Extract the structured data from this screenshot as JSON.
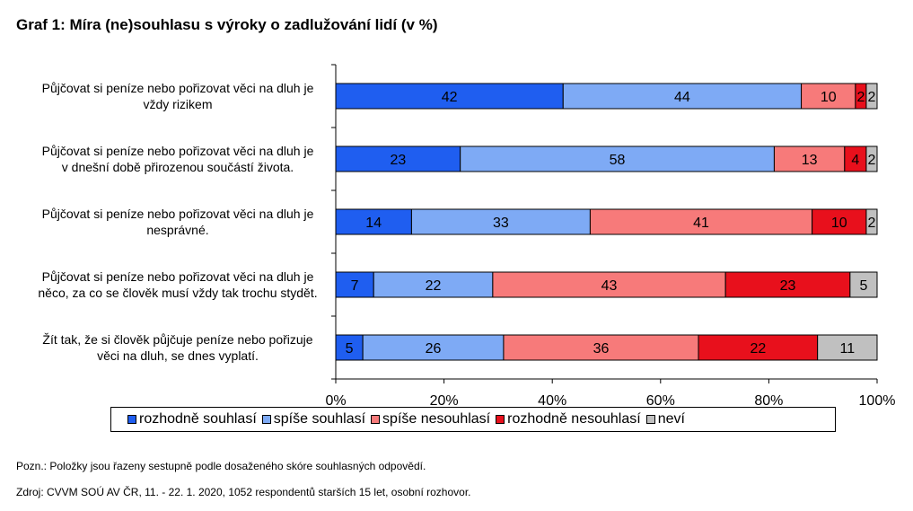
{
  "title": "Graf 1: Míra (ne)souhlasu s výroky o zadlužování lidí (v %)",
  "note": "Pozn.: Položky jsou řazeny sestupně podle dosaženého skóre souhlasných odpovědí.",
  "source": "Zdroj: CVVM SOÚ AV ČR,  11. - 22. 1. 2020, 1052 respondentů starších 15 let, osobní rozhovor.",
  "colors": {
    "rozhodne_souhlasi": "#1f5ef0",
    "spise_souhlasi": "#7eaaf5",
    "spise_nesouhlasi": "#f77a7a",
    "rozhodne_nesouhlasi": "#e8101c",
    "nevi": "#c0c0c0"
  },
  "chart_data": {
    "type": "bar",
    "orientation": "horizontal",
    "stacked": true,
    "categories": [
      "Půjčovat si peníze nebo pořizovat věci na dluh je vždy rizikem",
      "Půjčovat si peníze nebo pořizovat věci na dluh je v dnešní době přirozenou součástí života.",
      "Půjčovat si peníze nebo pořizovat věci na dluh je nesprávné.",
      "Půjčovat si peníze nebo pořizovat věci na dluh je něco, za co se člověk musí vždy tak trochu stydět.",
      "Žít tak, že si člověk půjčuje peníze nebo pořizuje věci na dluh, se dnes vyplatí."
    ],
    "category_lines": [
      [
        "Půjčovat si peníze nebo pořizovat věci na dluh je",
        "vždy rizikem"
      ],
      [
        "Půjčovat si peníze nebo pořizovat věci na dluh je",
        "v dnešní době přirozenou součástí života."
      ],
      [
        "Půjčovat si peníze nebo pořizovat věci na dluh je",
        "nesprávné."
      ],
      [
        "Půjčovat si peníze nebo pořizovat věci na dluh je",
        "něco, za co se člověk musí vždy tak trochu stydět."
      ],
      [
        "Žít tak, že si člověk půjčuje peníze nebo pořizuje",
        "věci na dluh, se dnes vyplatí."
      ]
    ],
    "series": [
      {
        "name": "rozhodně souhlasí",
        "color_key": "rozhodne_souhlasi",
        "values": [
          42,
          23,
          14,
          7,
          5
        ]
      },
      {
        "name": "spíše souhlasí",
        "color_key": "spise_souhlasi",
        "values": [
          44,
          58,
          33,
          22,
          26
        ]
      },
      {
        "name": "spíše nesouhlasí",
        "color_key": "spise_nesouhlasi",
        "values": [
          10,
          13,
          41,
          43,
          36
        ]
      },
      {
        "name": "rozhodně nesouhlasí",
        "color_key": "rozhodne_nesouhlasi",
        "values": [
          2,
          4,
          10,
          23,
          22
        ]
      },
      {
        "name": "neví",
        "color_key": "nevi",
        "values": [
          2,
          2,
          2,
          5,
          11
        ]
      }
    ],
    "xlim": [
      0,
      100
    ],
    "xticks": [
      "0%",
      "20%",
      "40%",
      "60%",
      "80%",
      "100%"
    ],
    "legend_position": "bottom",
    "grid": false
  }
}
